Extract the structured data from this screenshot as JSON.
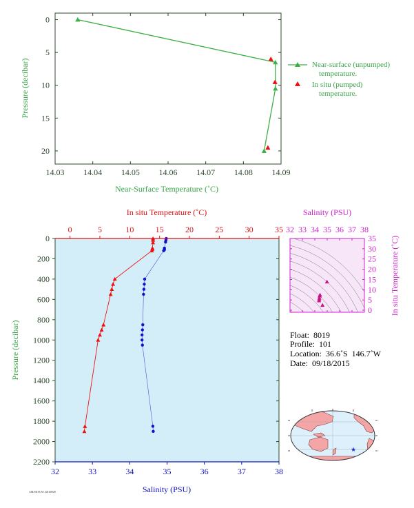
{
  "chart_data": [
    {
      "type": "line",
      "title": "",
      "xlabel": "Near-Surface Temperature (˚C)",
      "ylabel": "Pressure (decibar)",
      "xlim": [
        14.03,
        14.09
      ],
      "ylim": [
        22,
        -1
      ],
      "x_ticks": [
        "14.03",
        "14.04",
        "14.05",
        "14.06",
        "14.07",
        "14.08",
        "14.09"
      ],
      "y_ticks": [
        "0",
        "5",
        "10",
        "15",
        "20"
      ],
      "legend_position": "right",
      "series": [
        {
          "name": "Near-surface (unpumped) temperature.",
          "color": "#3cb043",
          "marker": "triangle-line",
          "points": [
            [
              14.036,
              0.0
            ],
            [
              14.0885,
              6.5
            ],
            [
              14.0885,
              10.5
            ],
            [
              14.0855,
              20.0
            ]
          ]
        },
        {
          "name": "In situ (pumped) temperature.",
          "color": "#ee1111",
          "marker": "triangle",
          "points": [
            [
              14.0873,
              6.0
            ],
            [
              14.0884,
              9.5
            ],
            [
              14.0865,
              19.5
            ]
          ]
        }
      ]
    },
    {
      "type": "line",
      "title": "",
      "ylabel": "Pressure (decibar)",
      "ylim": [
        2200,
        0
      ],
      "y_ticks": [
        "0",
        "200",
        "400",
        "600",
        "800",
        "1000",
        "1200",
        "1400",
        "1600",
        "1800",
        "2000",
        "2200"
      ],
      "x_top": {
        "label": "In situ Temperature (˚C)",
        "range": [
          -2.5,
          35
        ],
        "ticks": [
          "0",
          "5",
          "10",
          "15",
          "20",
          "25",
          "30",
          "35"
        ],
        "color": "#dd1111"
      },
      "x_bottom": {
        "label": "Salinity (PSU)",
        "range": [
          32,
          38
        ],
        "ticks": [
          "32",
          "33",
          "34",
          "35",
          "36",
          "37",
          "38"
        ],
        "color": "#1111bb"
      },
      "series": [
        {
          "name": "Temperature",
          "axis": "top",
          "color": "#ee1111",
          "points": [
            [
              13.9,
              0
            ],
            [
              13.9,
              15
            ],
            [
              13.9,
              40
            ],
            [
              13.8,
              95
            ],
            [
              13.8,
              105
            ],
            [
              13.7,
              120
            ],
            [
              7.5,
              400
            ],
            [
              7.2,
              450
            ],
            [
              7.0,
              500
            ],
            [
              6.8,
              550
            ],
            [
              5.6,
              850
            ],
            [
              5.3,
              900
            ],
            [
              5.0,
              950
            ],
            [
              4.7,
              1000
            ],
            [
              2.5,
              1850
            ],
            [
              2.4,
              1900
            ]
          ]
        },
        {
          "name": "Salinity",
          "axis": "bottom",
          "color": "#1111cc",
          "points": [
            [
              34.98,
              0
            ],
            [
              34.97,
              15
            ],
            [
              34.96,
              35
            ],
            [
              34.93,
              95
            ],
            [
              34.93,
              110
            ],
            [
              34.91,
              120
            ],
            [
              34.4,
              400
            ],
            [
              34.39,
              450
            ],
            [
              34.38,
              500
            ],
            [
              34.37,
              550
            ],
            [
              34.35,
              850
            ],
            [
              34.34,
              900
            ],
            [
              34.33,
              950
            ],
            [
              34.33,
              1000
            ],
            [
              34.34,
              1050
            ],
            [
              34.62,
              1850
            ],
            [
              34.63,
              1900
            ]
          ]
        }
      ]
    },
    {
      "type": "scatter",
      "title": "",
      "xlabel": "Salinity (PSU)",
      "ylabel": "In situ Temperature (˚C)",
      "xlim": [
        32,
        38
      ],
      "ylim": [
        -1,
        35
      ],
      "x_ticks": [
        "32",
        "33",
        "34",
        "35",
        "36",
        "37",
        "38"
      ],
      "y_ticks": [
        "0",
        "5",
        "10",
        "15",
        "20",
        "25",
        "30",
        "35"
      ],
      "grid": "density contours",
      "color": "#cc1188",
      "points": [
        [
          34.98,
          13.9
        ],
        [
          34.42,
          7.5
        ],
        [
          34.39,
          7.0
        ],
        [
          34.37,
          6.0
        ],
        [
          34.36,
          5.3
        ],
        [
          34.34,
          4.7
        ],
        [
          34.62,
          2.5
        ]
      ]
    }
  ],
  "info": {
    "float": "Float:  8019",
    "profile": "Profile:  101",
    "location": "Location:  36.6˚S  146.7˚W",
    "date": "Date:  09/18/2015"
  },
  "footer": {
    "credit": "AM/SIO/UW 20160928"
  },
  "colors": {
    "axis_green": "#2e4a2e",
    "label_green": "#3aa54a",
    "panel_blue": "#d4eef9",
    "ts_bg": "#f7e6f7",
    "magenta": "#cc22cc",
    "land": "#f4a6a6",
    "ocean": "#ddf0fb"
  }
}
